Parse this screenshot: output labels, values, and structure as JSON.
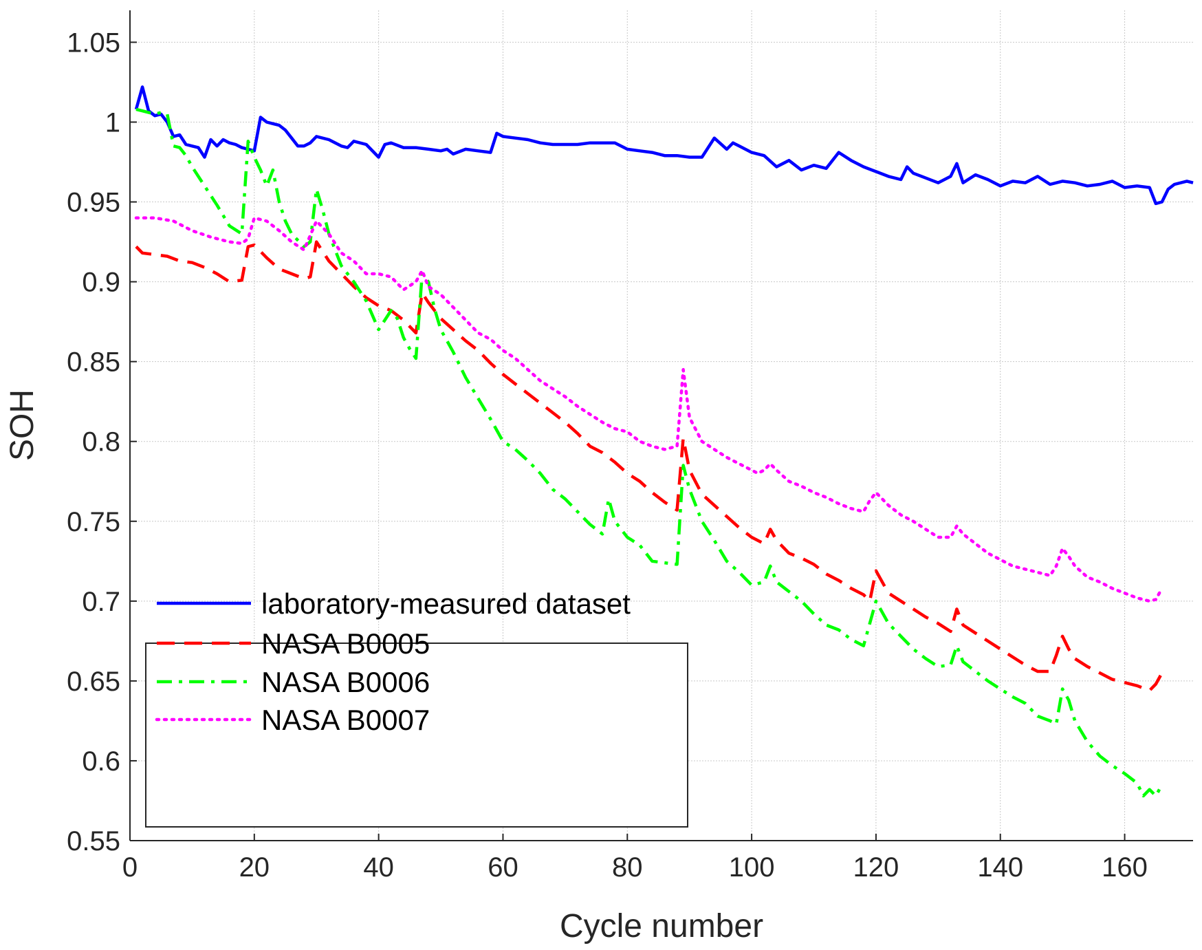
{
  "chart_data": {
    "type": "line",
    "title": "",
    "xlabel": "Cycle number",
    "ylabel": "SOH",
    "xlim": [
      0,
      171
    ],
    "ylim": [
      0.55,
      1.07
    ],
    "xticks": [
      0,
      20,
      40,
      60,
      80,
      100,
      120,
      140,
      160
    ],
    "xtick_labels": [
      "0",
      "20",
      "40",
      "60",
      "80",
      "100",
      "120",
      "140",
      "160"
    ],
    "yticks": [
      0.55,
      0.6,
      0.65,
      0.7,
      0.75,
      0.8,
      0.85,
      0.9,
      0.95,
      1.0,
      1.05
    ],
    "ytick_labels": [
      "0.55",
      "0.6",
      "0.65",
      "0.7",
      "0.75",
      "0.8",
      "0.85",
      "0.9",
      "0.95",
      "1",
      "1.05"
    ],
    "grid": true,
    "legend_position": "bottom-left",
    "series": [
      {
        "name": "laboratory-measured dataset",
        "color": "#0000ff",
        "style": "solid",
        "x": [
          1,
          2,
          3,
          4,
          5,
          6,
          7,
          8,
          9,
          10,
          11,
          12,
          13,
          14,
          15,
          16,
          17,
          18,
          19,
          20,
          21,
          22,
          23,
          24,
          25,
          26,
          27,
          28,
          29,
          30,
          32,
          34,
          35,
          36,
          38,
          40,
          41,
          42,
          44,
          46,
          48,
          50,
          51,
          52,
          54,
          56,
          58,
          59,
          60,
          62,
          64,
          66,
          68,
          70,
          72,
          74,
          76,
          78,
          80,
          82,
          84,
          86,
          88,
          90,
          92,
          94,
          96,
          97,
          98,
          100,
          102,
          104,
          106,
          108,
          110,
          112,
          114,
          116,
          118,
          120,
          122,
          124,
          125,
          126,
          128,
          130,
          132,
          133,
          134,
          136,
          138,
          140,
          142,
          144,
          146,
          148,
          150,
          152,
          154,
          156,
          158,
          160,
          162,
          164,
          165,
          166,
          167,
          168,
          170,
          171
        ],
        "y": [
          1.008,
          1.022,
          1.007,
          1.004,
          1.005,
          1.0,
          0.991,
          0.992,
          0.986,
          0.985,
          0.984,
          0.978,
          0.989,
          0.985,
          0.989,
          0.987,
          0.986,
          0.984,
          0.983,
          0.982,
          1.003,
          1.0,
          0.999,
          0.998,
          0.995,
          0.99,
          0.985,
          0.985,
          0.987,
          0.991,
          0.989,
          0.985,
          0.984,
          0.988,
          0.986,
          0.978,
          0.986,
          0.987,
          0.984,
          0.984,
          0.983,
          0.982,
          0.983,
          0.98,
          0.983,
          0.982,
          0.981,
          0.993,
          0.991,
          0.99,
          0.989,
          0.987,
          0.986,
          0.986,
          0.986,
          0.987,
          0.987,
          0.987,
          0.983,
          0.982,
          0.981,
          0.979,
          0.979,
          0.978,
          0.978,
          0.99,
          0.983,
          0.987,
          0.985,
          0.981,
          0.979,
          0.972,
          0.976,
          0.97,
          0.973,
          0.971,
          0.981,
          0.976,
          0.972,
          0.969,
          0.966,
          0.964,
          0.972,
          0.968,
          0.965,
          0.962,
          0.966,
          0.974,
          0.962,
          0.967,
          0.964,
          0.96,
          0.963,
          0.962,
          0.966,
          0.961,
          0.963,
          0.962,
          0.96,
          0.961,
          0.963,
          0.959,
          0.96,
          0.959,
          0.949,
          0.95,
          0.958,
          0.961,
          0.963,
          0.962
        ]
      },
      {
        "name": "NASA B0005",
        "color": "#ff0000",
        "style": "dashed",
        "x": [
          1,
          2,
          4,
          6,
          8,
          10,
          12,
          14,
          16,
          18,
          19,
          20,
          22,
          24,
          26,
          28,
          29,
          30,
          32,
          34,
          36,
          38,
          40,
          42,
          44,
          46,
          47,
          48,
          50,
          52,
          54,
          56,
          58,
          60,
          62,
          64,
          66,
          68,
          70,
          72,
          74,
          76,
          78,
          80,
          82,
          84,
          86,
          88,
          89,
          90,
          92,
          94,
          96,
          98,
          100,
          102,
          103,
          104,
          106,
          108,
          110,
          112,
          114,
          116,
          118,
          119,
          120,
          122,
          124,
          126,
          128,
          130,
          132,
          133,
          134,
          136,
          138,
          140,
          142,
          144,
          146,
          148,
          149,
          150,
          151,
          152,
          154,
          156,
          158,
          160,
          162,
          164,
          165,
          166
        ],
        "y": [
          0.922,
          0.918,
          0.917,
          0.916,
          0.913,
          0.912,
          0.909,
          0.905,
          0.9,
          0.901,
          0.922,
          0.923,
          0.915,
          0.908,
          0.905,
          0.902,
          0.903,
          0.925,
          0.913,
          0.905,
          0.897,
          0.89,
          0.885,
          0.882,
          0.876,
          0.868,
          0.893,
          0.887,
          0.877,
          0.87,
          0.863,
          0.857,
          0.849,
          0.842,
          0.836,
          0.83,
          0.824,
          0.818,
          0.812,
          0.805,
          0.797,
          0.793,
          0.787,
          0.78,
          0.775,
          0.768,
          0.762,
          0.757,
          0.802,
          0.782,
          0.767,
          0.76,
          0.753,
          0.746,
          0.74,
          0.736,
          0.745,
          0.738,
          0.73,
          0.727,
          0.723,
          0.717,
          0.713,
          0.708,
          0.704,
          0.7,
          0.719,
          0.705,
          0.7,
          0.695,
          0.69,
          0.686,
          0.681,
          0.695,
          0.685,
          0.68,
          0.675,
          0.67,
          0.665,
          0.66,
          0.656,
          0.656,
          0.666,
          0.678,
          0.67,
          0.664,
          0.659,
          0.655,
          0.651,
          0.649,
          0.647,
          0.644,
          0.648,
          0.655
        ]
      },
      {
        "name": "NASA B0006",
        "color": "#00ff00",
        "style": "dashdot",
        "x": [
          1,
          2,
          4,
          5,
          6,
          7,
          8,
          9,
          10,
          12,
          14,
          16,
          18,
          19,
          20,
          21,
          22,
          23,
          24,
          25,
          26,
          28,
          29,
          30,
          31,
          32,
          34,
          36,
          38,
          40,
          42,
          43,
          44,
          45,
          46,
          47,
          48,
          49,
          50,
          52,
          54,
          56,
          58,
          60,
          62,
          64,
          66,
          68,
          70,
          72,
          74,
          76,
          77,
          78,
          80,
          82,
          84,
          86,
          88,
          89,
          90,
          92,
          94,
          96,
          98,
          100,
          102,
          103,
          104,
          106,
          108,
          110,
          112,
          114,
          116,
          118,
          120,
          122,
          124,
          126,
          128,
          130,
          132,
          133,
          134,
          136,
          138,
          140,
          142,
          144,
          146,
          148,
          149,
          150,
          151,
          152,
          154,
          156,
          158,
          160,
          162,
          163,
          164,
          165,
          166
        ],
        "y": [
          1.008,
          1.007,
          1.005,
          1.006,
          1.005,
          0.985,
          0.984,
          0.979,
          0.972,
          0.96,
          0.948,
          0.935,
          0.93,
          0.988,
          0.978,
          0.97,
          0.96,
          0.97,
          0.95,
          0.938,
          0.93,
          0.922,
          0.925,
          0.958,
          0.945,
          0.93,
          0.91,
          0.9,
          0.888,
          0.87,
          0.882,
          0.877,
          0.865,
          0.858,
          0.852,
          0.905,
          0.9,
          0.883,
          0.87,
          0.856,
          0.84,
          0.827,
          0.814,
          0.8,
          0.795,
          0.788,
          0.78,
          0.77,
          0.764,
          0.756,
          0.748,
          0.742,
          0.764,
          0.75,
          0.74,
          0.735,
          0.725,
          0.724,
          0.723,
          0.785,
          0.77,
          0.75,
          0.738,
          0.725,
          0.718,
          0.71,
          0.712,
          0.722,
          0.712,
          0.706,
          0.7,
          0.692,
          0.685,
          0.682,
          0.676,
          0.672,
          0.7,
          0.686,
          0.678,
          0.67,
          0.664,
          0.659,
          0.66,
          0.672,
          0.662,
          0.656,
          0.65,
          0.645,
          0.64,
          0.636,
          0.628,
          0.625,
          0.623,
          0.645,
          0.638,
          0.625,
          0.612,
          0.603,
          0.597,
          0.592,
          0.586,
          0.578,
          0.582,
          0.578,
          0.585
        ]
      },
      {
        "name": "NASA B0007",
        "color": "#ff00ff",
        "style": "dotted",
        "x": [
          1,
          4,
          7,
          10,
          13,
          16,
          18,
          19,
          20,
          22,
          24,
          26,
          28,
          30,
          32,
          34,
          36,
          38,
          40,
          42,
          44,
          46,
          47,
          48,
          50,
          52,
          54,
          56,
          58,
          60,
          62,
          64,
          66,
          68,
          70,
          72,
          74,
          76,
          78,
          80,
          82,
          84,
          86,
          88,
          89,
          90,
          92,
          94,
          96,
          98,
          100,
          101,
          102,
          103,
          104,
          106,
          108,
          110,
          112,
          114,
          116,
          118,
          119,
          120,
          122,
          124,
          126,
          128,
          130,
          132,
          133,
          134,
          136,
          138,
          140,
          142,
          144,
          146,
          148,
          149,
          150,
          151,
          152,
          154,
          156,
          158,
          160,
          162,
          164,
          165,
          166
        ],
        "y": [
          0.94,
          0.94,
          0.938,
          0.932,
          0.928,
          0.925,
          0.924,
          0.927,
          0.94,
          0.938,
          0.932,
          0.925,
          0.92,
          0.938,
          0.93,
          0.918,
          0.913,
          0.905,
          0.905,
          0.903,
          0.895,
          0.9,
          0.907,
          0.897,
          0.892,
          0.884,
          0.876,
          0.868,
          0.864,
          0.857,
          0.852,
          0.845,
          0.838,
          0.833,
          0.828,
          0.822,
          0.817,
          0.812,
          0.808,
          0.806,
          0.8,
          0.797,
          0.795,
          0.797,
          0.845,
          0.815,
          0.8,
          0.795,
          0.79,
          0.786,
          0.782,
          0.78,
          0.782,
          0.786,
          0.782,
          0.775,
          0.772,
          0.768,
          0.765,
          0.761,
          0.758,
          0.756,
          0.763,
          0.768,
          0.76,
          0.754,
          0.75,
          0.745,
          0.74,
          0.74,
          0.747,
          0.742,
          0.736,
          0.73,
          0.726,
          0.722,
          0.72,
          0.718,
          0.716,
          0.722,
          0.733,
          0.728,
          0.722,
          0.715,
          0.712,
          0.708,
          0.705,
          0.702,
          0.7,
          0.701,
          0.708
        ]
      }
    ]
  }
}
